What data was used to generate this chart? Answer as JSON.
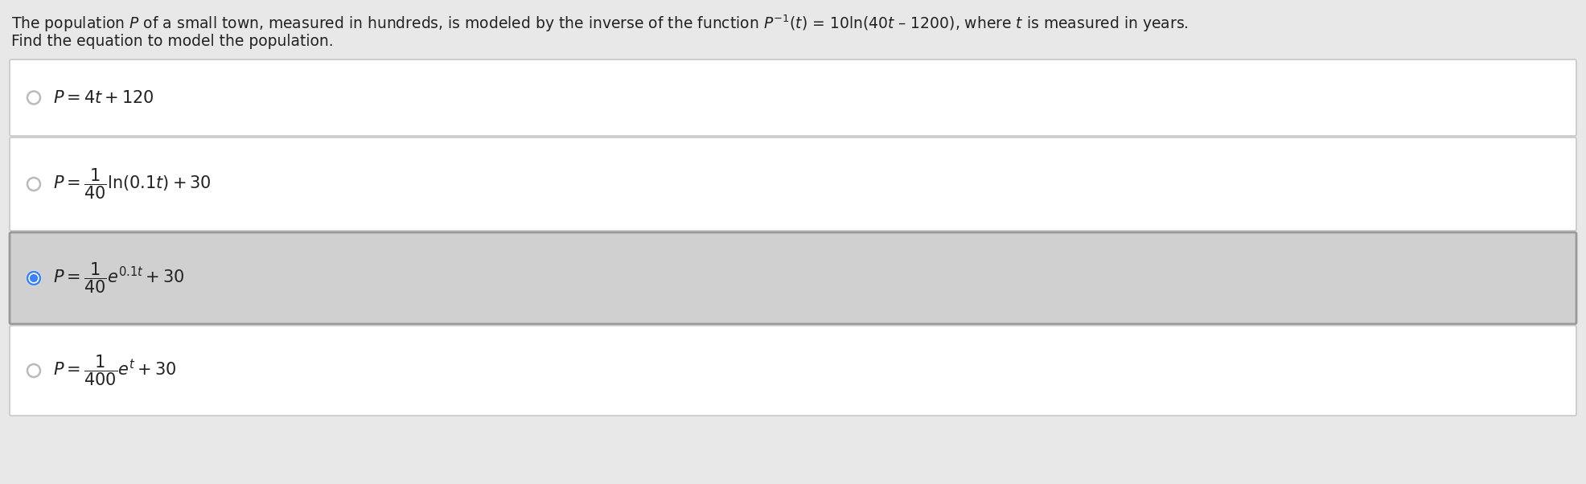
{
  "background_color": "#e8e8e8",
  "question_line1": "The population $P$ of a small town, measured in hundreds, is modeled by the inverse of the function $P^{-1}(t)$ = 10ln(40$t$ – 1200), where $t$ is measured in years.",
  "question_line2": "Find the equation to model the population.",
  "options": [
    {
      "math": "$P = 4t + 120$",
      "selected": false,
      "bg": "#ffffff"
    },
    {
      "math": "$P = \\dfrac{1}{40}\\mathrm{ln}(0.1t) + 30$",
      "selected": false,
      "bg": "#ffffff"
    },
    {
      "math": "$P = \\dfrac{1}{40}e^{0.1t} + 30$",
      "selected": true,
      "bg": "#d0d0d0"
    },
    {
      "math": "$P = \\dfrac{1}{400}e^{t} + 30$",
      "selected": false,
      "bg": "#ffffff"
    }
  ],
  "box_edge_color": "#c8c8c8",
  "box_edge_selected": "#999999",
  "radio_color_unsel": "#bbbbbb",
  "radio_color_sel": "#3b82f6",
  "text_color": "#222222",
  "question_fontsize": 13.5,
  "option_fontsize": 15,
  "fig_w": 19.72,
  "fig_h": 6.02,
  "dpi": 100
}
